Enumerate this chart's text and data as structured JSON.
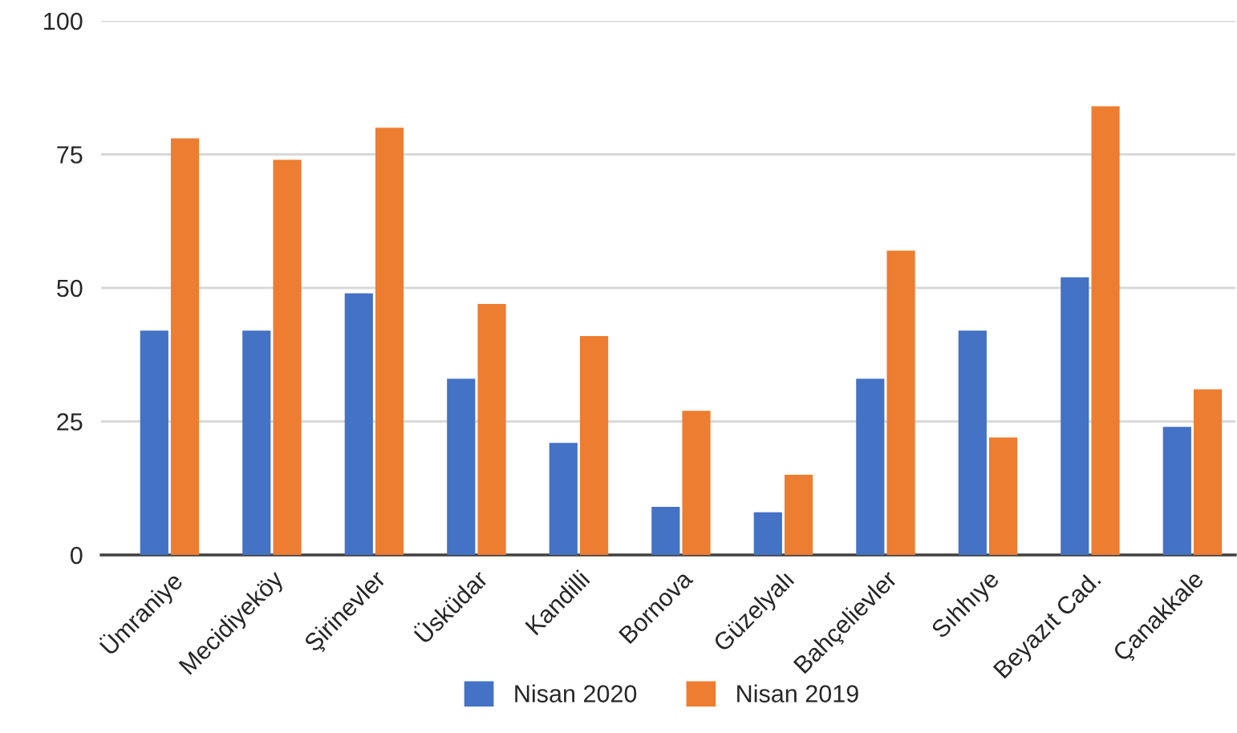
{
  "chart_data": {
    "type": "bar",
    "categories": [
      "Ümraniye",
      "Mecidiyeköy",
      "Şirinevler",
      "Üsküdar",
      "Kandilli",
      "Bornova",
      "Güzelyalı",
      "Bahçelievler",
      "Sıhhıye",
      "Beyazıt Cad.",
      "Çanakkale"
    ],
    "series": [
      {
        "name": "Nisan 2020",
        "color": "#4472c4",
        "values": [
          42,
          42,
          49,
          33,
          21,
          9,
          8,
          33,
          42,
          52,
          24
        ]
      },
      {
        "name": "Nisan 2019",
        "color": "#ed7d31",
        "values": [
          78,
          74,
          80,
          47,
          41,
          27,
          15,
          57,
          22,
          84,
          31
        ]
      }
    ],
    "ylim": [
      0,
      100
    ],
    "yticks": [
      0,
      25,
      50,
      75,
      100
    ],
    "grid": "y",
    "legend": "bottom"
  }
}
